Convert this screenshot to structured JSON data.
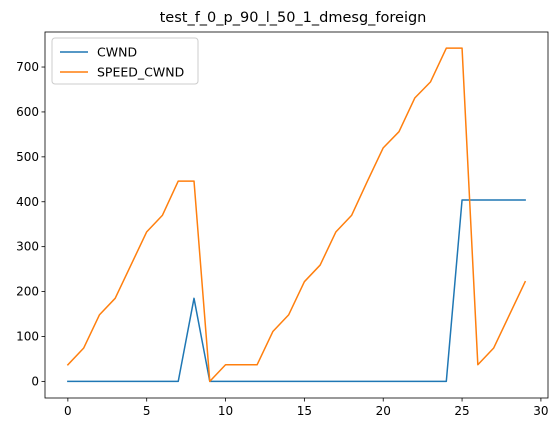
{
  "chart_data": {
    "type": "line",
    "title": "test_f_0_p_90_l_50_1_dmesg_foreign",
    "xlabel": "",
    "ylabel": "",
    "xlim": [
      -1.45,
      30.45
    ],
    "ylim": [
      -37,
      778
    ],
    "xticks": [
      0,
      5,
      10,
      15,
      20,
      25,
      30
    ],
    "yticks": [
      0,
      100,
      200,
      300,
      400,
      500,
      600,
      700
    ],
    "grid": false,
    "legend_position": "upper-left",
    "series": [
      {
        "name": "CWND",
        "color": "#1f77b4",
        "x": [
          0,
          1,
          2,
          3,
          4,
          5,
          6,
          7,
          8,
          9,
          10,
          11,
          12,
          13,
          14,
          15,
          16,
          17,
          18,
          19,
          20,
          21,
          22,
          23,
          24,
          25,
          26,
          27,
          28,
          29
        ],
        "values": [
          0,
          0,
          0,
          0,
          0,
          0,
          0,
          0,
          185,
          0,
          0,
          0,
          0,
          0,
          0,
          0,
          0,
          0,
          0,
          0,
          0,
          0,
          0,
          0,
          0,
          404,
          404,
          404,
          404,
          404
        ]
      },
      {
        "name": "SPEED_CWND",
        "color": "#ff7f0e",
        "x": [
          0,
          1,
          2,
          3,
          4,
          5,
          6,
          7,
          8,
          9,
          10,
          11,
          12,
          13,
          14,
          15,
          16,
          17,
          18,
          19,
          20,
          21,
          22,
          23,
          24,
          25,
          26,
          27,
          28,
          29
        ],
        "values": [
          37,
          74,
          148,
          185,
          259,
          333,
          370,
          446,
          446,
          0,
          37,
          37,
          37,
          111,
          148,
          222,
          259,
          333,
          370,
          446,
          520,
          556,
          631,
          667,
          742,
          742,
          37,
          74,
          148,
          222
        ]
      }
    ]
  }
}
